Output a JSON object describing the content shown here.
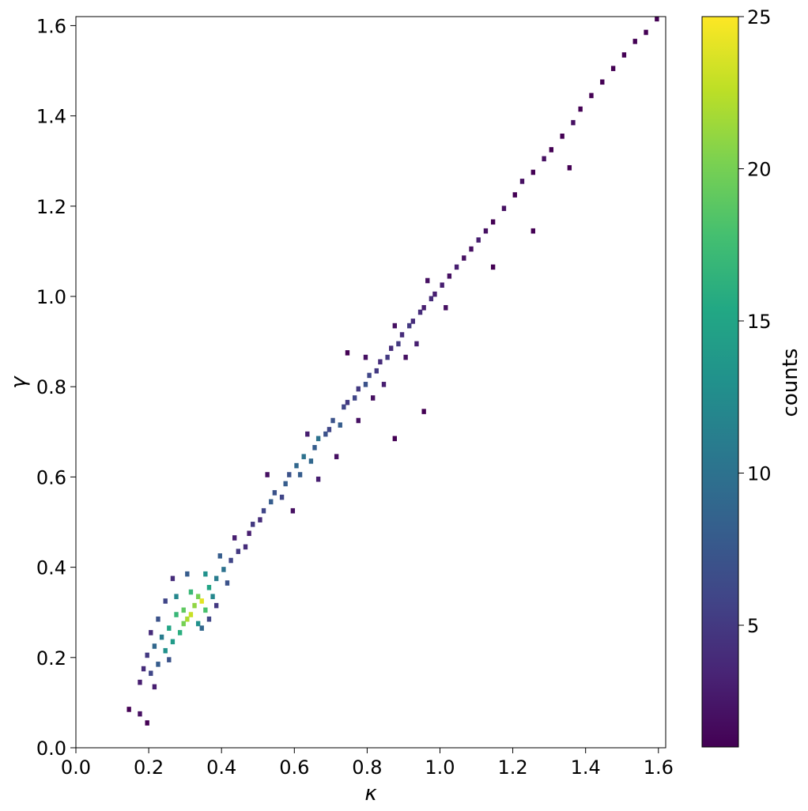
{
  "chart_data": {
    "type": "heatmap",
    "subtype": "2d-histogram",
    "xlabel": "κ",
    "ylabel": "γ",
    "xlim": [
      0.0,
      1.62
    ],
    "ylim": [
      0.0,
      1.62
    ],
    "xticks": [
      0.0,
      0.2,
      0.4,
      0.6,
      0.8,
      1.0,
      1.2,
      1.4,
      1.6
    ],
    "xtick_labels": [
      "0.0",
      "0.2",
      "0.4",
      "0.6",
      "0.8",
      "1.0",
      "1.2",
      "1.4",
      "1.6"
    ],
    "yticks": [
      0.0,
      0.2,
      0.4,
      0.6,
      0.8,
      1.0,
      1.2,
      1.4,
      1.6
    ],
    "ytick_labels": [
      "0.0",
      "0.2",
      "0.4",
      "0.6",
      "0.8",
      "1.0",
      "1.2",
      "1.4",
      "1.6"
    ],
    "bin_width": 0.0108,
    "colormap": "viridis",
    "colorbar": {
      "label": "counts",
      "range": [
        1,
        25
      ],
      "ticks": [
        5,
        10,
        15,
        20,
        25
      ],
      "tick_labels": [
        "5",
        "10",
        "15",
        "20",
        "25"
      ]
    },
    "grid": false,
    "cells": [
      [
        0.14,
        0.08,
        1
      ],
      [
        0.17,
        0.07,
        2
      ],
      [
        0.19,
        0.05,
        1
      ],
      [
        0.17,
        0.14,
        3
      ],
      [
        0.18,
        0.17,
        4
      ],
      [
        0.19,
        0.2,
        5
      ],
      [
        0.2,
        0.16,
        6
      ],
      [
        0.21,
        0.13,
        3
      ],
      [
        0.22,
        0.18,
        8
      ],
      [
        0.21,
        0.22,
        9
      ],
      [
        0.23,
        0.24,
        11
      ],
      [
        0.24,
        0.21,
        13
      ],
      [
        0.25,
        0.26,
        15
      ],
      [
        0.26,
        0.23,
        14
      ],
      [
        0.27,
        0.29,
        17
      ],
      [
        0.28,
        0.25,
        16
      ],
      [
        0.29,
        0.3,
        19
      ],
      [
        0.3,
        0.28,
        22
      ],
      [
        0.31,
        0.29,
        23
      ],
      [
        0.32,
        0.31,
        21
      ],
      [
        0.33,
        0.33,
        20
      ],
      [
        0.34,
        0.32,
        24
      ],
      [
        0.35,
        0.3,
        18
      ],
      [
        0.31,
        0.34,
        17
      ],
      [
        0.29,
        0.27,
        20
      ],
      [
        0.27,
        0.33,
        12
      ],
      [
        0.33,
        0.27,
        13
      ],
      [
        0.36,
        0.35,
        15
      ],
      [
        0.37,
        0.33,
        12
      ],
      [
        0.38,
        0.37,
        11
      ],
      [
        0.35,
        0.38,
        13
      ],
      [
        0.4,
        0.39,
        10
      ],
      [
        0.39,
        0.42,
        8
      ],
      [
        0.41,
        0.36,
        7
      ],
      [
        0.42,
        0.41,
        6
      ],
      [
        0.44,
        0.43,
        5
      ],
      [
        0.43,
        0.46,
        3
      ],
      [
        0.24,
        0.32,
        6
      ],
      [
        0.22,
        0.28,
        7
      ],
      [
        0.3,
        0.38,
        8
      ],
      [
        0.26,
        0.37,
        4
      ],
      [
        0.34,
        0.26,
        9
      ],
      [
        0.36,
        0.28,
        6
      ],
      [
        0.38,
        0.31,
        5
      ],
      [
        0.25,
        0.19,
        7
      ],
      [
        0.2,
        0.25,
        4
      ],
      [
        0.46,
        0.44,
        4
      ],
      [
        0.47,
        0.47,
        3
      ],
      [
        0.48,
        0.49,
        5
      ],
      [
        0.5,
        0.5,
        4
      ],
      [
        0.51,
        0.52,
        6
      ],
      [
        0.53,
        0.54,
        8
      ],
      [
        0.54,
        0.56,
        7
      ],
      [
        0.56,
        0.55,
        6
      ],
      [
        0.57,
        0.58,
        8
      ],
      [
        0.58,
        0.6,
        7
      ],
      [
        0.6,
        0.62,
        9
      ],
      [
        0.61,
        0.6,
        8
      ],
      [
        0.62,
        0.64,
        10
      ],
      [
        0.64,
        0.63,
        9
      ],
      [
        0.65,
        0.66,
        8
      ],
      [
        0.66,
        0.68,
        10
      ],
      [
        0.68,
        0.69,
        7
      ],
      [
        0.69,
        0.7,
        6
      ],
      [
        0.7,
        0.72,
        7
      ],
      [
        0.72,
        0.71,
        8
      ],
      [
        0.73,
        0.75,
        6
      ],
      [
        0.74,
        0.76,
        5
      ],
      [
        0.76,
        0.77,
        6
      ],
      [
        0.77,
        0.79,
        5
      ],
      [
        0.79,
        0.8,
        7
      ],
      [
        0.8,
        0.82,
        6
      ],
      [
        0.82,
        0.83,
        5
      ],
      [
        0.83,
        0.85,
        4
      ],
      [
        0.85,
        0.86,
        5
      ],
      [
        0.86,
        0.88,
        4
      ],
      [
        0.88,
        0.89,
        5
      ],
      [
        0.89,
        0.91,
        4
      ],
      [
        0.91,
        0.93,
        5
      ],
      [
        0.92,
        0.94,
        4
      ],
      [
        0.94,
        0.96,
        4
      ],
      [
        0.95,
        0.97,
        3
      ],
      [
        0.97,
        0.99,
        4
      ],
      [
        0.98,
        1.0,
        3
      ],
      [
        1.0,
        1.02,
        3
      ],
      [
        1.02,
        1.04,
        2
      ],
      [
        1.04,
        1.06,
        3
      ],
      [
        1.06,
        1.08,
        2
      ],
      [
        1.08,
        1.1,
        2
      ],
      [
        1.1,
        1.12,
        3
      ],
      [
        1.12,
        1.14,
        2
      ],
      [
        1.14,
        1.16,
        1
      ],
      [
        1.17,
        1.19,
        2
      ],
      [
        1.2,
        1.22,
        1
      ],
      [
        1.22,
        1.25,
        2
      ],
      [
        1.25,
        1.27,
        1
      ],
      [
        1.28,
        1.3,
        2
      ],
      [
        1.3,
        1.32,
        1
      ],
      [
        1.33,
        1.35,
        1
      ],
      [
        1.36,
        1.38,
        2
      ],
      [
        1.38,
        1.41,
        1
      ],
      [
        1.41,
        1.44,
        1
      ],
      [
        1.44,
        1.47,
        1
      ],
      [
        1.47,
        1.5,
        1
      ],
      [
        1.5,
        1.53,
        1
      ],
      [
        1.53,
        1.56,
        1
      ],
      [
        1.56,
        1.58,
        1
      ],
      [
        1.59,
        1.61,
        1
      ],
      [
        0.95,
        0.74,
        1
      ],
      [
        0.87,
        0.68,
        1
      ],
      [
        0.74,
        0.87,
        1
      ],
      [
        1.14,
        1.06,
        1
      ],
      [
        1.25,
        1.14,
        1
      ],
      [
        1.35,
        1.28,
        1
      ],
      [
        0.52,
        0.6,
        2
      ],
      [
        0.59,
        0.52,
        2
      ],
      [
        0.66,
        0.59,
        3
      ],
      [
        0.71,
        0.64,
        2
      ],
      [
        0.63,
        0.69,
        3
      ],
      [
        0.77,
        0.72,
        2
      ],
      [
        0.81,
        0.77,
        2
      ],
      [
        0.84,
        0.8,
        3
      ],
      [
        0.79,
        0.86,
        2
      ],
      [
        0.9,
        0.86,
        2
      ],
      [
        0.93,
        0.89,
        3
      ],
      [
        0.87,
        0.93,
        2
      ],
      [
        0.96,
        1.03,
        2
      ],
      [
        1.01,
        0.97,
        2
      ]
    ]
  }
}
